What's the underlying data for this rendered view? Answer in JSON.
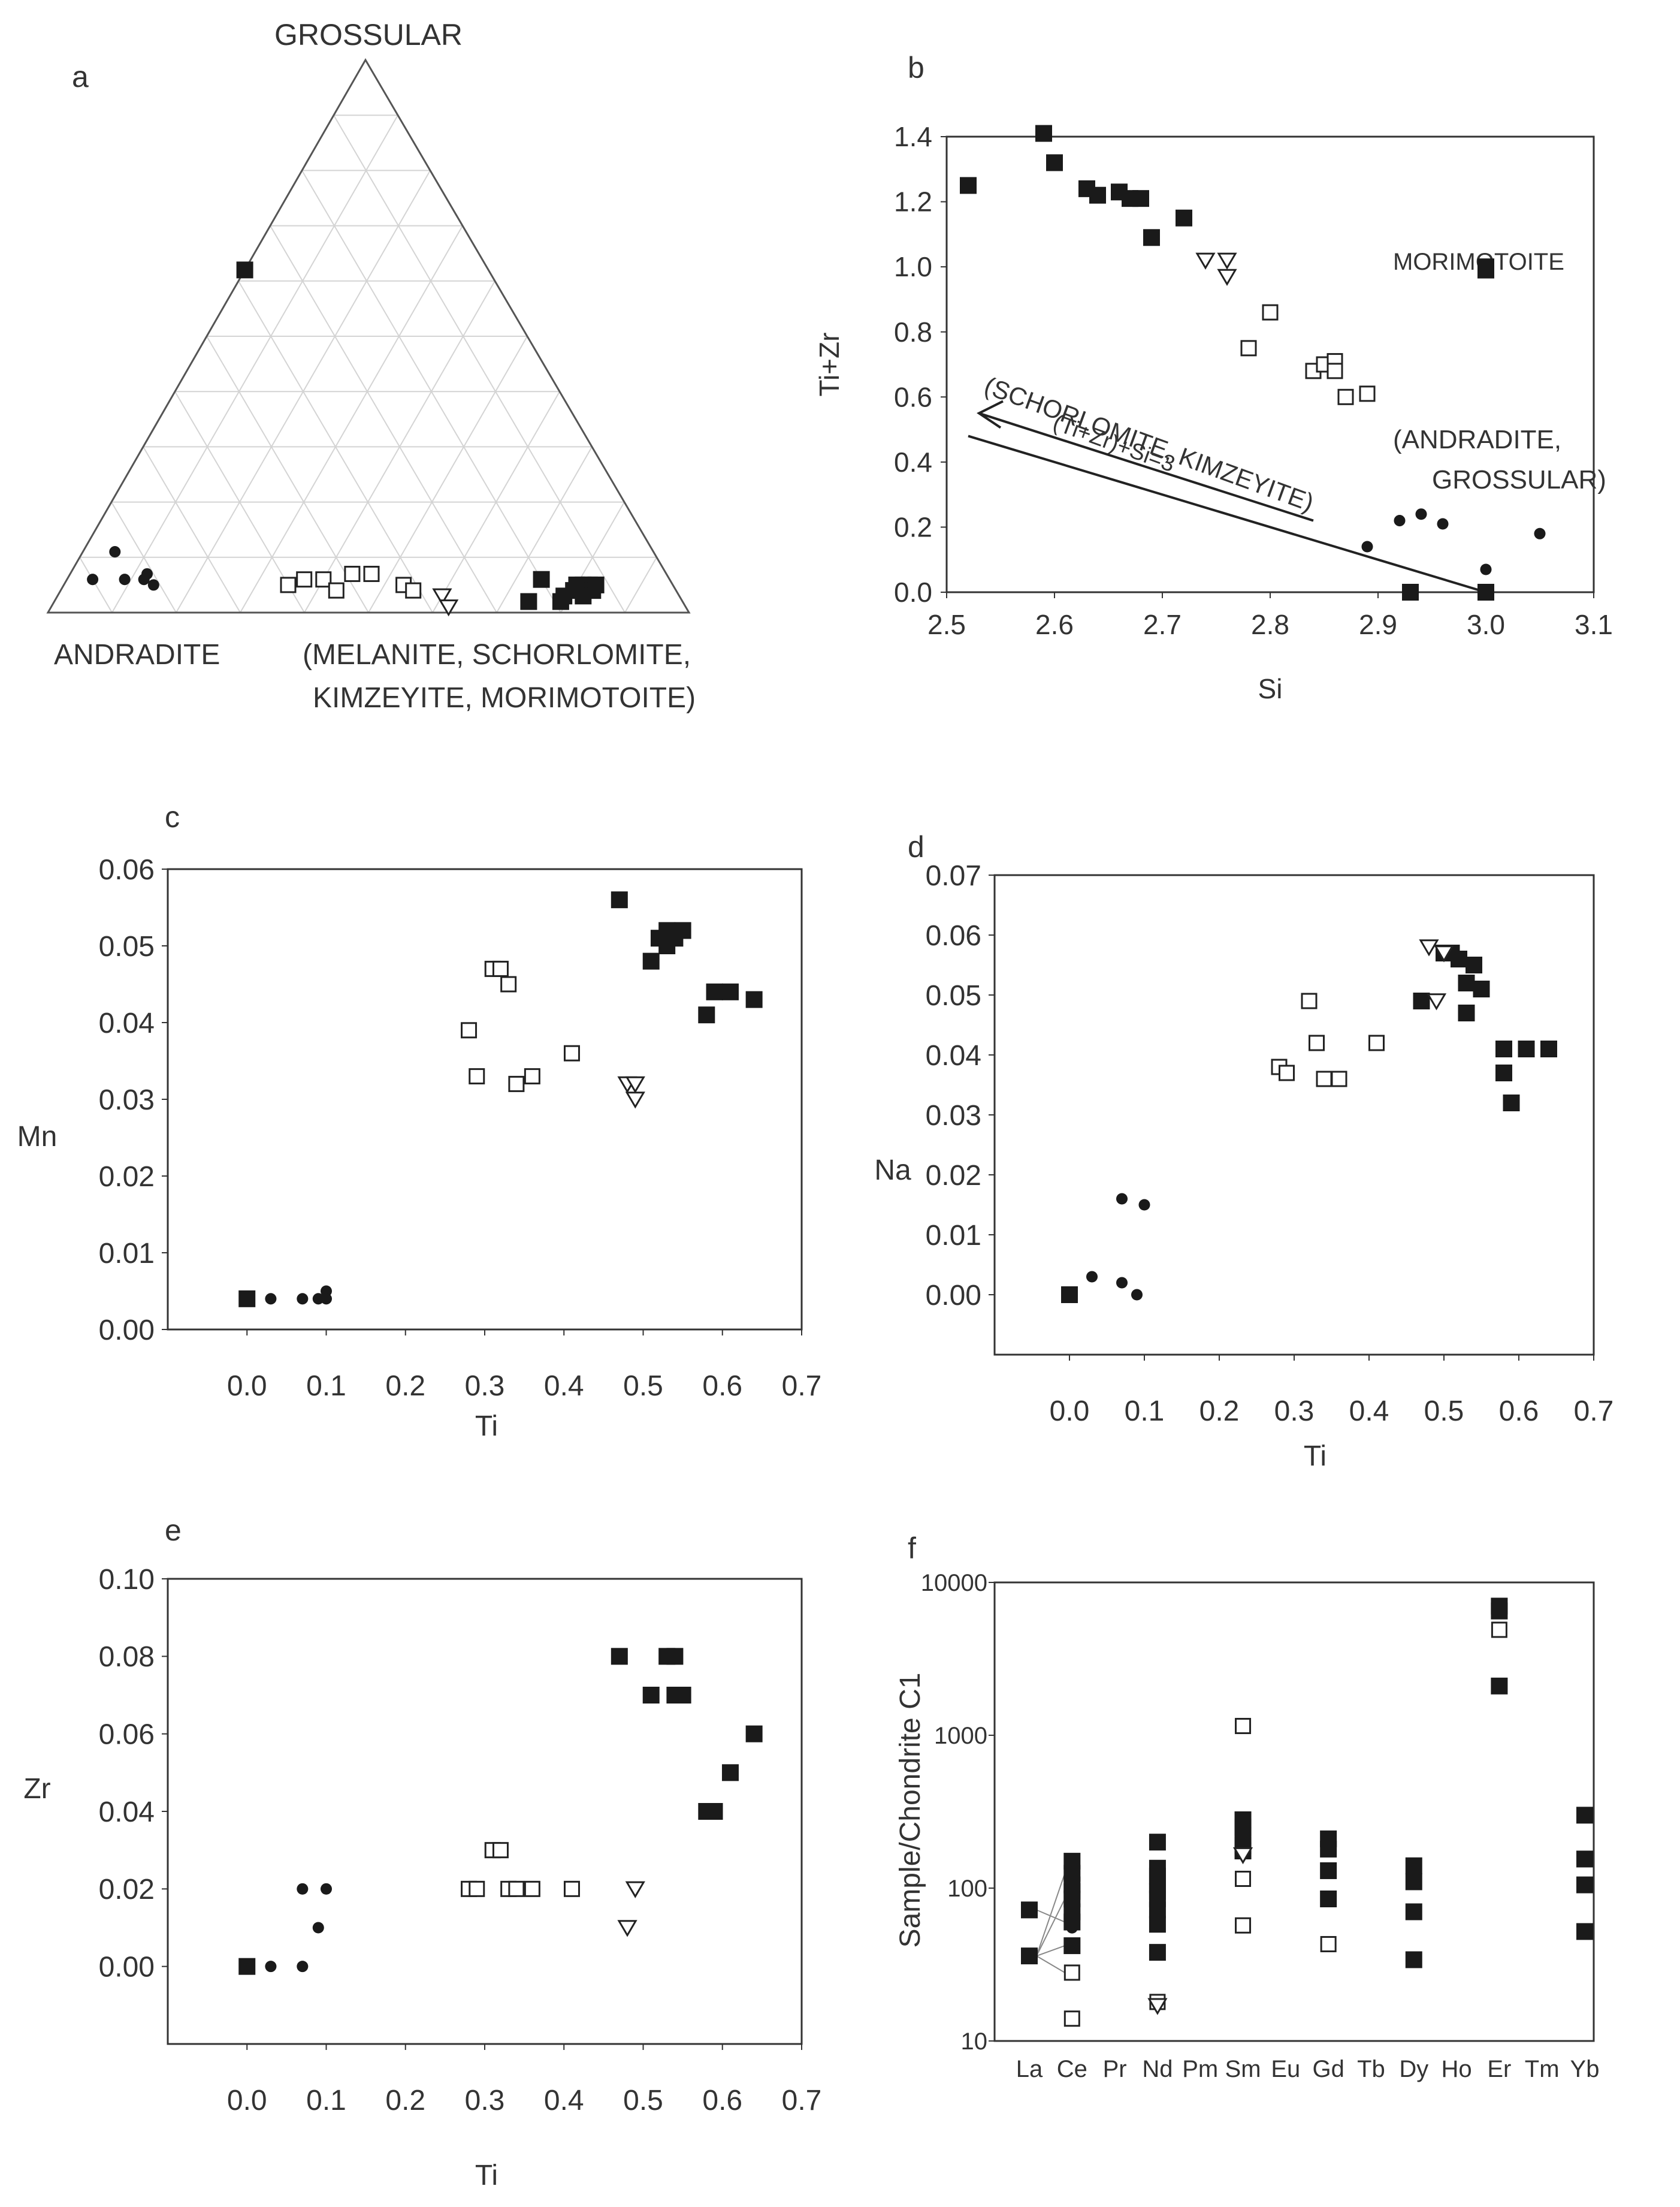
{
  "panels": {
    "a": {
      "letter": "a",
      "apex_top": "GROSSULAR",
      "apex_left": "ANDRADITE",
      "apex_right_line1": "(MELANITE, SCHORLOMITE,",
      "apex_right_line2": "KIMZEYITE, MORIMOTOITE)"
    },
    "b": {
      "letter": "b",
      "morimotoite_label": "MORIMOTOITE",
      "andradite_label_line1": "(ANDRADITE,",
      "andradite_label_line2": "GROSSULAR)",
      "schorlomite_label": "(SCHORLOMITE, KIMZEYITE)",
      "formula_label": "(Ti+Zr)+Si=3"
    },
    "c": {
      "letter": "c"
    },
    "d": {
      "letter": "d"
    },
    "e": {
      "letter": "e"
    },
    "f": {
      "letter": "f"
    }
  },
  "chart_data": [
    {
      "panel": "a",
      "type": "ternary",
      "vertices": [
        "GROSSULAR",
        "ANDRADITE",
        "MELANITE/SCHORLOMITE/KIMZEYITE/MORIMOTOITE"
      ],
      "note": "coordinates given as fractions [grossular, andradite, melanite-group]",
      "series": [
        {
          "name": "filled-square",
          "marker": "square-filled",
          "points": [
            [
              0.62,
              0.38,
              0.0
            ],
            [
              0.06,
              0.2,
              0.74
            ],
            [
              0.03,
              0.18,
              0.79
            ],
            [
              0.04,
              0.16,
              0.8
            ],
            [
              0.05,
              0.15,
              0.8
            ],
            [
              0.05,
              0.14,
              0.81
            ],
            [
              0.05,
              0.13,
              0.82
            ],
            [
              0.04,
              0.13,
              0.83
            ],
            [
              0.05,
              0.12,
              0.83
            ],
            [
              0.03,
              0.15,
              0.82
            ],
            [
              0.02,
              0.24,
              0.74
            ],
            [
              0.02,
              0.19,
              0.79
            ]
          ]
        },
        {
          "name": "open-square",
          "marker": "square-open",
          "points": [
            [
              0.05,
              0.6,
              0.35
            ],
            [
              0.06,
              0.57,
              0.37
            ],
            [
              0.06,
              0.54,
              0.4
            ],
            [
              0.04,
              0.53,
              0.43
            ],
            [
              0.07,
              0.49,
              0.44
            ],
            [
              0.07,
              0.46,
              0.47
            ],
            [
              0.05,
              0.42,
              0.53
            ],
            [
              0.04,
              0.41,
              0.55
            ]
          ]
        },
        {
          "name": "open-triangle",
          "marker": "triangle-down-open",
          "points": [
            [
              0.03,
              0.37,
              0.6
            ],
            [
              0.01,
              0.37,
              0.62
            ]
          ]
        },
        {
          "name": "filled-circle",
          "marker": "circle-filled",
          "points": [
            [
              0.06,
              0.9,
              0.04
            ],
            [
              0.11,
              0.84,
              0.05
            ],
            [
              0.06,
              0.85,
              0.09
            ],
            [
              0.06,
              0.82,
              0.12
            ],
            [
              0.07,
              0.81,
              0.12
            ],
            [
              0.05,
              0.81,
              0.14
            ]
          ]
        }
      ]
    },
    {
      "panel": "b",
      "type": "scatter",
      "xlabel": "Si",
      "ylabel": "Ti+Zr",
      "xlim": [
        2.5,
        3.1
      ],
      "ylim": [
        0.0,
        1.4
      ],
      "xticks": [
        "2.5",
        "2.6",
        "2.7",
        "2.8",
        "2.9",
        "3.0",
        "3.1"
      ],
      "yticks": [
        "0.0",
        "0.2",
        "0.4",
        "0.6",
        "0.8",
        "1.0",
        "1.2",
        "1.4"
      ],
      "line": {
        "x": [
          2.52,
          3.0
        ],
        "y": [
          0.48,
          0.0
        ],
        "label": "(Ti+Zr)+Si=3"
      },
      "series": [
        {
          "name": "filled-square",
          "marker": "square-filled",
          "x": [
            2.52,
            2.59,
            2.6,
            2.63,
            2.64,
            2.66,
            2.67,
            2.68,
            2.69,
            2.72,
            2.93,
            3.0,
            3.0,
            3.0
          ],
          "y": [
            1.25,
            1.41,
            1.32,
            1.24,
            1.22,
            1.23,
            1.21,
            1.21,
            1.09,
            1.15,
            0.0,
            0.99,
            1.0,
            0.0
          ]
        },
        {
          "name": "open-triangle",
          "marker": "triangle-down-open",
          "x": [
            2.74,
            2.76,
            2.76
          ],
          "y": [
            1.02,
            1.02,
            0.97
          ]
        },
        {
          "name": "open-square",
          "marker": "square-open",
          "x": [
            2.78,
            2.8,
            2.84,
            2.85,
            2.86,
            2.87,
            2.89,
            2.86
          ],
          "y": [
            0.75,
            0.86,
            0.68,
            0.7,
            0.71,
            0.6,
            0.61,
            0.68
          ]
        },
        {
          "name": "filled-circle",
          "marker": "circle-filled",
          "x": [
            2.89,
            2.92,
            2.94,
            2.96,
            3.0,
            3.05
          ],
          "y": [
            0.14,
            0.22,
            0.24,
            0.21,
            0.07,
            0.18
          ]
        }
      ]
    },
    {
      "panel": "c",
      "type": "scatter",
      "xlabel": "Ti",
      "ylabel": "Mn",
      "xlim": [
        -0.1,
        0.7
      ],
      "ylim": [
        0.0,
        0.06
      ],
      "xticks": [
        "0.0",
        "0.1",
        "0.2",
        "0.3",
        "0.4",
        "0.5",
        "0.6",
        "0.7"
      ],
      "yticks": [
        "0.00",
        "0.01",
        "0.02",
        "0.03",
        "0.04",
        "0.05",
        "0.06"
      ],
      "series": [
        {
          "name": "filled-square",
          "marker": "square-filled",
          "x": [
            0.0,
            0.47,
            0.51,
            0.52,
            0.53,
            0.53,
            0.54,
            0.55,
            0.58,
            0.59,
            0.61,
            0.64
          ],
          "y": [
            0.004,
            0.056,
            0.048,
            0.051,
            0.05,
            0.052,
            0.051,
            0.052,
            0.041,
            0.044,
            0.044,
            0.043
          ]
        },
        {
          "name": "open-square",
          "marker": "square-open",
          "x": [
            0.28,
            0.29,
            0.31,
            0.32,
            0.33,
            0.34,
            0.36,
            0.41
          ],
          "y": [
            0.039,
            0.033,
            0.047,
            0.047,
            0.045,
            0.032,
            0.033,
            0.036
          ]
        },
        {
          "name": "open-triangle",
          "marker": "triangle-down-open",
          "x": [
            0.48,
            0.49,
            0.49
          ],
          "y": [
            0.032,
            0.032,
            0.03
          ]
        },
        {
          "name": "filled-circle",
          "marker": "circle-filled",
          "x": [
            0.03,
            0.07,
            0.09,
            0.1,
            0.1
          ],
          "y": [
            0.004,
            0.004,
            0.004,
            0.005,
            0.004
          ]
        }
      ]
    },
    {
      "panel": "d",
      "type": "scatter",
      "xlabel": "Ti",
      "ylabel": "Na",
      "xlim": [
        -0.1,
        0.7
      ],
      "ylim": [
        -0.01,
        0.07
      ],
      "xticks": [
        "0.0",
        "0.1",
        "0.2",
        "0.3",
        "0.4",
        "0.5",
        "0.6",
        "0.7"
      ],
      "yticks": [
        "0.00",
        "0.01",
        "0.02",
        "0.03",
        "0.04",
        "0.05",
        "0.06",
        "0.07"
      ],
      "series": [
        {
          "name": "filled-square",
          "marker": "square-filled",
          "x": [
            0.0,
            0.47,
            0.5,
            0.51,
            0.52,
            0.53,
            0.53,
            0.54,
            0.55,
            0.58,
            0.58,
            0.59,
            0.61,
            0.64
          ],
          "y": [
            0.0,
            0.049,
            0.057,
            0.057,
            0.056,
            0.052,
            0.047,
            0.055,
            0.051,
            0.037,
            0.041,
            0.032,
            0.041,
            0.041
          ]
        },
        {
          "name": "open-square",
          "marker": "square-open",
          "x": [
            0.28,
            0.29,
            0.32,
            0.33,
            0.34,
            0.36,
            0.41
          ],
          "y": [
            0.038,
            0.037,
            0.049,
            0.042,
            0.036,
            0.036,
            0.042
          ]
        },
        {
          "name": "open-triangle",
          "marker": "triangle-down-open",
          "x": [
            0.48,
            0.49,
            0.5
          ],
          "y": [
            0.058,
            0.049,
            0.057
          ]
        },
        {
          "name": "filled-circle",
          "marker": "circle-filled",
          "x": [
            0.03,
            0.07,
            0.07,
            0.09,
            0.1
          ],
          "y": [
            0.003,
            0.016,
            0.002,
            0.0,
            0.015
          ]
        }
      ]
    },
    {
      "panel": "e",
      "type": "scatter",
      "xlabel": "Ti",
      "ylabel": "Zr",
      "xlim": [
        -0.1,
        0.7
      ],
      "ylim": [
        -0.02,
        0.1
      ],
      "xticks": [
        "0.0",
        "0.1",
        "0.2",
        "0.3",
        "0.4",
        "0.5",
        "0.6",
        "0.7"
      ],
      "yticks": [
        "0.00",
        "0.02",
        "0.04",
        "0.06",
        "0.08",
        "0.10"
      ],
      "series": [
        {
          "name": "filled-square",
          "marker": "square-filled",
          "x": [
            0.0,
            0.47,
            0.51,
            0.53,
            0.54,
            0.54,
            0.55,
            0.58,
            0.59,
            0.61,
            0.64
          ],
          "y": [
            0.0,
            0.08,
            0.07,
            0.08,
            0.08,
            0.07,
            0.07,
            0.04,
            0.04,
            0.05,
            0.06
          ]
        },
        {
          "name": "open-square",
          "marker": "square-open",
          "x": [
            0.28,
            0.29,
            0.31,
            0.32,
            0.33,
            0.34,
            0.36,
            0.41
          ],
          "y": [
            0.02,
            0.02,
            0.03,
            0.03,
            0.02,
            0.02,
            0.02,
            0.02
          ]
        },
        {
          "name": "open-triangle",
          "marker": "triangle-down-open",
          "x": [
            0.48,
            0.49
          ],
          "y": [
            0.01,
            0.02
          ]
        },
        {
          "name": "filled-circle",
          "marker": "circle-filled",
          "x": [
            0.03,
            0.07,
            0.07,
            0.09,
            0.1
          ],
          "y": [
            0.0,
            0.02,
            0.0,
            0.01,
            0.02
          ]
        }
      ]
    },
    {
      "panel": "f",
      "type": "scatter",
      "yscale": "log",
      "ylabel": "Sample/Chondrite C1",
      "ylim": [
        10,
        10000
      ],
      "yticks": [
        "10",
        "100",
        "1000",
        "10000"
      ],
      "categories": [
        "La",
        "Ce",
        "Pr",
        "Nd",
        "Pm",
        "Sm",
        "Eu",
        "Gd",
        "Tb",
        "Dy",
        "Ho",
        "Er",
        "Tm",
        "Yb"
      ],
      "series": [
        {
          "name": "filled-square",
          "marker": "square-filled",
          "points": [
            [
              "La",
              72
            ],
            [
              "La",
              36
            ],
            [
              "Ce",
              150
            ],
            [
              "Ce",
              125
            ],
            [
              "Ce",
              105
            ],
            [
              "Ce",
              95
            ],
            [
              "Ce",
              85
            ],
            [
              "Ce",
              70
            ],
            [
              "Ce",
              60
            ],
            [
              "Ce",
              42
            ],
            [
              "Nd",
              200
            ],
            [
              "Nd",
              135
            ],
            [
              "Nd",
              120
            ],
            [
              "Nd",
              105
            ],
            [
              "Nd",
              95
            ],
            [
              "Nd",
              85
            ],
            [
              "Nd",
              72
            ],
            [
              "Nd",
              58
            ],
            [
              "Nd",
              38
            ],
            [
              "Sm",
              280
            ],
            [
              "Sm",
              250
            ],
            [
              "Sm",
              220
            ],
            [
              "Sm",
              190
            ],
            [
              "Sm",
              175
            ],
            [
              "Gd",
              210
            ],
            [
              "Gd",
              180
            ],
            [
              "Gd",
              130
            ],
            [
              "Gd",
              85
            ],
            [
              "Dy",
              140
            ],
            [
              "Dy",
              110
            ],
            [
              "Dy",
              70
            ],
            [
              "Dy",
              34
            ],
            [
              "Er",
              7000
            ],
            [
              "Er",
              6500
            ],
            [
              "Er",
              2100
            ],
            [
              "Yb",
              300
            ],
            [
              "Yb",
              155
            ],
            [
              "Yb",
              105
            ],
            [
              "Yb",
              52
            ]
          ]
        },
        {
          "name": "open-square",
          "marker": "square-open",
          "points": [
            [
              "Ce",
              28
            ],
            [
              "Ce",
              14
            ],
            [
              "Nd",
              18
            ],
            [
              "Sm",
              1150
            ],
            [
              "Sm",
              115
            ],
            [
              "Sm",
              57
            ],
            [
              "Gd",
              43
            ],
            [
              "Er",
              4900
            ]
          ]
        },
        {
          "name": "open-triangle",
          "marker": "triangle-down-open",
          "points": [
            [
              "Nd",
              17
            ],
            [
              "Sm",
              165
            ]
          ]
        },
        {
          "name": "filled-circle",
          "marker": "circle-filled",
          "points": [
            [
              "Ce",
              55
            ]
          ]
        }
      ]
    }
  ]
}
